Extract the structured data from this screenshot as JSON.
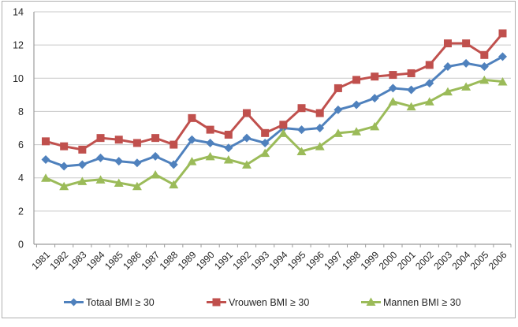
{
  "chart_data": {
    "type": "line",
    "title": "",
    "xlabel": "",
    "ylabel": "",
    "categories": [
      "1981",
      "1982",
      "1983",
      "1984",
      "1985",
      "1986",
      "1987",
      "1988",
      "1989",
      "1990",
      "1991",
      "1992",
      "1993",
      "1994",
      "1995",
      "1996",
      "1997",
      "1998",
      "1999",
      "2000",
      "2001",
      "2002",
      "2003",
      "2004",
      "2005",
      "2006"
    ],
    "series": [
      {
        "name": "Totaal BMI ≥ 30",
        "color": "#4F81BD",
        "marker": "diamond",
        "values": [
          5.1,
          4.7,
          4.8,
          5.2,
          5.0,
          4.9,
          5.3,
          4.8,
          6.3,
          6.1,
          5.8,
          6.4,
          6.1,
          7.0,
          6.9,
          7.0,
          8.1,
          8.4,
          8.8,
          9.4,
          9.3,
          9.7,
          10.7,
          10.9,
          10.7,
          11.3
        ]
      },
      {
        "name": "Vrouwen BMI ≥ 30",
        "color": "#C0504D",
        "marker": "square",
        "values": [
          6.2,
          5.9,
          5.7,
          6.4,
          6.3,
          6.1,
          6.4,
          6.0,
          7.6,
          6.9,
          6.6,
          7.9,
          6.7,
          7.2,
          8.2,
          7.9,
          9.4,
          9.9,
          10.1,
          10.2,
          10.3,
          10.8,
          12.1,
          12.1,
          11.4,
          12.7
        ]
      },
      {
        "name": "Mannen BMI ≥ 30",
        "color": "#9BBB59",
        "marker": "triangle",
        "values": [
          4.0,
          3.5,
          3.8,
          3.9,
          3.7,
          3.5,
          4.2,
          3.6,
          5.0,
          5.3,
          5.1,
          4.8,
          5.5,
          6.7,
          5.6,
          5.9,
          6.7,
          6.8,
          7.1,
          8.6,
          8.3,
          8.6,
          9.2,
          9.5,
          9.9,
          9.8
        ]
      }
    ],
    "y_axis": {
      "min": 0,
      "max": 14,
      "tick_step": 2,
      "tick_labels": [
        "0",
        "2",
        "4",
        "6",
        "8",
        "10",
        "12",
        "14"
      ]
    },
    "x_axis": {
      "label_rotation_deg": -45
    },
    "grid": true,
    "legend_position": "bottom"
  },
  "colors": {
    "series_totaal": "#4F81BD",
    "series_vrouwen": "#C0504D",
    "series_mannen": "#9BBB59",
    "gridline": "#C9C9C9",
    "axis_line": "#9C9C9C",
    "text": "#262626",
    "frame_border": "#AFAFAF"
  }
}
